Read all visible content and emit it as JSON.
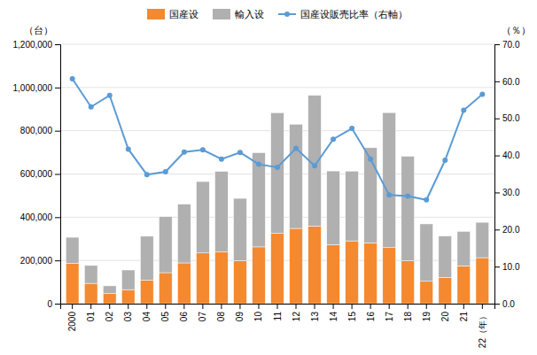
{
  "chart_data": {
    "type": "bar",
    "stacked": true,
    "grid": true,
    "legend": "top",
    "ylabel": "（台）",
    "y2label": "（％）",
    "categories": [
      "2000",
      "01",
      "02",
      "03",
      "04",
      "05",
      "06",
      "07",
      "08",
      "09",
      "10",
      "11",
      "12",
      "13",
      "14",
      "15",
      "16",
      "17",
      "18",
      "19",
      "20",
      "21",
      "22（年）"
    ],
    "series": [
      {
        "name": "国産设",
        "color": "#f4892f",
        "values": [
          186283,
          93833,
          46294,
          64868,
          108572,
          143282,
          188479,
          234354,
          238465,
          198732,
          262532,
          324795,
          347997,
          358582,
          272605,
          290337,
          281659,
          259008,
          197827,
          103282,
          121059,
          174521,
          212746
        ]
      },
      {
        "name": "輸入设",
        "color": "#b0b0b0",
        "values": [
          120662,
          82834,
          36051,
          90798,
          203389,
          259408,
          271999,
          330572,
          373305,
          288410,
          435872,
          558555,
          482061,
          605335,
          341243,
          322930,
          439752,
          624794,
          483989,
          265524,
          191730,
          159868,
          163511
        ]
      },
      {
        "name": "国産设販売比率（右軸）",
        "type": "line",
        "axis": "y2",
        "color": "#5b9bd5",
        "marker": "circle",
        "values": [
          60.7,
          53.1,
          56.2,
          41.7,
          34.8,
          35.6,
          40.9,
          41.5,
          39.0,
          40.8,
          37.6,
          36.8,
          41.9,
          37.2,
          44.4,
          47.3,
          39.0,
          29.3,
          29.0,
          28.0,
          38.7,
          52.2,
          56.5
        ]
      }
    ],
    "ylim": [
      0,
      1200000
    ],
    "yticks": [
      0,
      {
        "value": 200000,
        "label": "200,000"
      },
      {
        "value": 400000,
        "label": "400,000"
      },
      {
        "value": 600000,
        "label": "600,000"
      },
      {
        "value": 800000,
        "label": "800,000"
      },
      {
        "value": 1000000,
        "label": "1,000,000"
      },
      {
        "value": 1200000,
        "label": "1,200,000"
      }
    ],
    "y2lim": [
      0,
      70.0
    ],
    "y2ticks": [
      {
        "value": 0.0,
        "label": "0.0"
      },
      {
        "value": 10.0,
        "label": "10.0"
      },
      {
        "value": 20.0,
        "label": "20.0"
      },
      {
        "value": 30.0,
        "label": "30.0"
      },
      {
        "value": 40.0,
        "label": "40.0"
      },
      {
        "value": 50.0,
        "label": "50.0"
      },
      {
        "value": 60.0,
        "label": "60.0"
      },
      {
        "value": 70.0,
        "label": "70.0"
      }
    ]
  }
}
